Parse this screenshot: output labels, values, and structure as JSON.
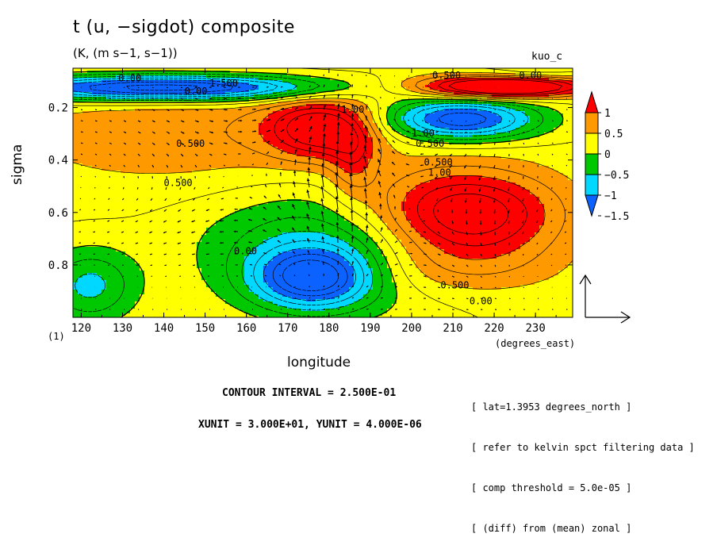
{
  "title": "t (u, −sigdot) composite",
  "subtitle": "(K, (m s−1, s−1))",
  "run_label": "kuo_c",
  "contour_interval": "CONTOUR INTERVAL = 2.500E-01",
  "vector_units": "XUNIT = 3.000E+01, YUNIT = 4.000E-06",
  "notes": [
    "[ lat=1.3953 degrees_north ]",
    "[ refer to kelvin spct filtering data ]",
    "[ comp threshold = 5.0e-05 ]",
    "[ (diff) from (mean) zonal ]"
  ],
  "chart_data": {
    "type": "heatmap",
    "title": "t (u, −sigdot) composite",
    "subtitle": "(K, (m s−1, s−1))",
    "xlabel": "longitude",
    "x_units": "(degrees_east)",
    "ylabel": "sigma",
    "y_units": "(1)",
    "xlim": [
      118,
      239
    ],
    "ylim": [
      1.0,
      0.05
    ],
    "x_ticks": [
      120,
      130,
      140,
      150,
      160,
      170,
      180,
      190,
      200,
      210,
      220,
      230
    ],
    "y_ticks": [
      0.2,
      0.4,
      0.6,
      0.8
    ],
    "colorbar": {
      "levels": [
        -1.5,
        -1,
        -0.5,
        0,
        0.5,
        1
      ],
      "tick_labels": [
        "1",
        "0.5",
        "0",
        "−0.5",
        "−1",
        "−1.5"
      ],
      "colors": [
        "#0b62ff",
        "#00d8ff",
        "#00c800",
        "#ffff00",
        "#ff9900",
        "#ff0000"
      ]
    },
    "features": [
      {
        "kind": "max",
        "x": 212,
        "y": 0.62,
        "value": 1.5
      },
      {
        "kind": "max",
        "x": 178,
        "y": 0.28,
        "value": 1.25
      },
      {
        "kind": "max",
        "x": 215,
        "y": 0.12,
        "value": 1.5
      },
      {
        "kind": "min",
        "x": 213,
        "y": 0.25,
        "value": -1.0
      },
      {
        "kind": "min",
        "x": 176,
        "y": 0.85,
        "value": -1.0
      },
      {
        "kind": "min",
        "x": 140,
        "y": 0.12,
        "value": -1.5
      }
    ],
    "contour_labels": [
      {
        "x": 129,
        "y": 0.1,
        "text": "0.00"
      },
      {
        "x": 151,
        "y": 0.12,
        "text": "1.500"
      },
      {
        "x": 145,
        "y": 0.15,
        "text": "0.00"
      },
      {
        "x": 143,
        "y": 0.35,
        "text": "0.500"
      },
      {
        "x": 140,
        "y": 0.5,
        "text": "0.500"
      },
      {
        "x": 157,
        "y": 0.76,
        "text": "0.00"
      },
      {
        "x": 183,
        "y": 0.22,
        "text": "1.00"
      },
      {
        "x": 205,
        "y": 0.09,
        "text": "0.500"
      },
      {
        "x": 226,
        "y": 0.09,
        "text": "0.00"
      },
      {
        "x": 200,
        "y": 0.31,
        "text": "1.00"
      },
      {
        "x": 201,
        "y": 0.35,
        "text": "0.500"
      },
      {
        "x": 203,
        "y": 0.42,
        "text": "0.500"
      },
      {
        "x": 204,
        "y": 0.46,
        "text": "1.00"
      },
      {
        "x": 207,
        "y": 0.89,
        "text": "0.500"
      },
      {
        "x": 214,
        "y": 0.95,
        "text": "0.00"
      }
    ],
    "vector_reference": "XUNIT = 3.000E+01, YUNIT = 4.000E-06"
  },
  "text": {
    "xlabel": "longitude",
    "ylabel": "sigma",
    "x_units": "(degrees_east)",
    "y_units": "(1)"
  }
}
